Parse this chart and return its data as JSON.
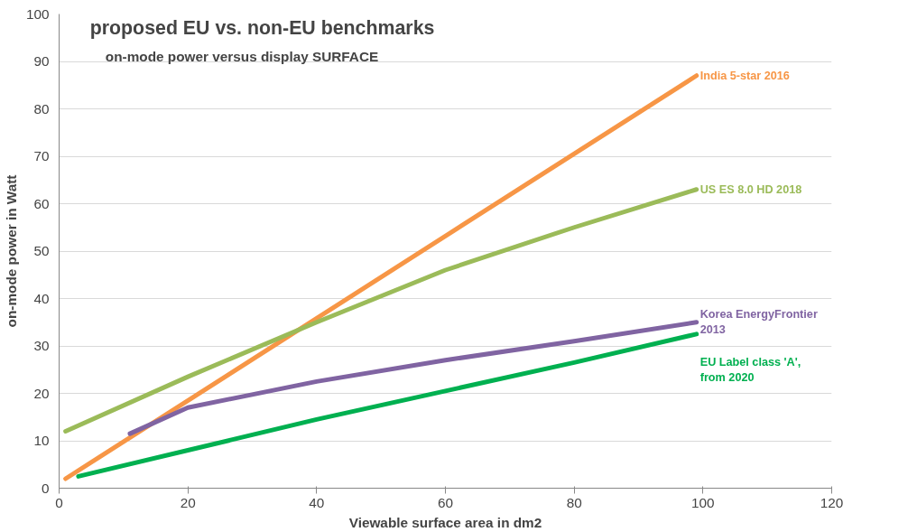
{
  "chart_data": {
    "type": "line",
    "title": "proposed EU vs. non-EU benchmarks",
    "subtitle": "on-mode power versus display SURFACE",
    "xlabel": "Viewable surface area in dm2",
    "ylabel": "on-mode power in Watt",
    "xlim": [
      0,
      120
    ],
    "xticks": [
      0,
      20,
      40,
      60,
      80,
      100,
      120
    ],
    "ylim": [
      0,
      100
    ],
    "yticks": [
      0,
      10,
      20,
      30,
      40,
      50,
      60,
      70,
      80,
      90,
      100
    ],
    "grid": "y",
    "legend": false,
    "line_style": "solid",
    "marker": "none",
    "series": [
      {
        "name": "India 5-star 2016",
        "color": "#f79646",
        "x": [
          1,
          99
        ],
        "values": [
          2,
          87
        ]
      },
      {
        "name": "US ES 8.0 HD 2018",
        "color": "#9bbb59",
        "x": [
          1,
          20,
          40,
          60,
          80,
          99
        ],
        "values": [
          12,
          23.5,
          35,
          46,
          55,
          63
        ]
      },
      {
        "name": "Korea EnergyFrontier\n2013",
        "color": "#8064a2",
        "x": [
          11,
          20,
          40,
          60,
          80,
          99
        ],
        "values": [
          11.5,
          17,
          22.5,
          27,
          31,
          35
        ]
      },
      {
        "name": "EU Label class 'A',\nfrom 2020",
        "color": "#00b050",
        "x": [
          3,
          20,
          40,
          60,
          80,
          99
        ],
        "values": [
          2.5,
          8,
          14.5,
          20.5,
          26.5,
          32.5
        ]
      }
    ]
  }
}
